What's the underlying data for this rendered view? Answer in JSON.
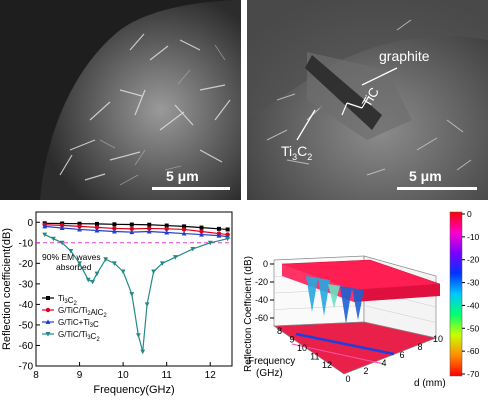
{
  "sem_left": {
    "scale_label": "5 μm"
  },
  "sem_right": {
    "scale_label": "5 μm",
    "label_graphite": "graphite",
    "label_tic": "TiC",
    "label_ti3c2_main": "Ti",
    "label_ti3c2_sub1": "3",
    "label_ti3c2_c": "C",
    "label_ti3c2_sub2": "2"
  },
  "chart_data": [
    {
      "type": "line",
      "xlabel": "Frequency(GHz)",
      "ylabel": "Reflection coefficient(dB)",
      "xlim": [
        8,
        12.5
      ],
      "ylim": [
        -70,
        5
      ],
      "xticks": [
        "8",
        "9",
        "10",
        "11",
        "12"
      ],
      "yticks": [
        "0",
        "-10",
        "-20",
        "-30",
        "-40",
        "-50",
        "-60",
        "-70"
      ],
      "threshold_db": -10,
      "annotation": "90% EM waves absorbed",
      "legend": [
        "Ti3C2",
        "G/TiC/Ti2AlC2",
        "G/TiC+Ti3C",
        "G/TiC/Ti3C2"
      ],
      "series": [
        {
          "name": "Ti3C2",
          "color": "#000000",
          "marker": "square",
          "x": [
            8.2,
            8.6,
            9.0,
            9.4,
            9.8,
            10.2,
            10.6,
            11.0,
            11.4,
            11.8,
            12.2,
            12.4
          ],
          "y": [
            -0.5,
            -0.6,
            -0.7,
            -0.8,
            -1.0,
            -1.1,
            -1.2,
            -1.6,
            -2.0,
            -2.6,
            -3.2,
            -3.5
          ]
        },
        {
          "name": "G/TiC/Ti2AlC2",
          "color": "#e0001b",
          "marker": "circle",
          "x": [
            8.2,
            8.6,
            9.0,
            9.4,
            9.8,
            10.2,
            10.6,
            11.0,
            11.4,
            11.8,
            12.2,
            12.4
          ],
          "y": [
            -1.2,
            -1.5,
            -2.0,
            -2.5,
            -3.0,
            -3.2,
            -3.0,
            -3.2,
            -3.5,
            -4.5,
            -5.5,
            -6.0
          ]
        },
        {
          "name": "G/TiC+Ti3C",
          "color": "#1f3fd0",
          "marker": "triangle",
          "x": [
            8.2,
            8.6,
            9.0,
            9.4,
            9.8,
            10.2,
            10.6,
            11.0,
            11.4,
            11.8,
            12.2,
            12.4
          ],
          "y": [
            -2.0,
            -2.8,
            -3.5,
            -4.0,
            -4.5,
            -4.8,
            -4.5,
            -5.0,
            -5.5,
            -6.0,
            -6.5,
            -7.0
          ]
        },
        {
          "name": "G/TiC/Ti3C2",
          "color": "#238a86",
          "marker": "triangle-down",
          "x": [
            8.2,
            8.4,
            8.6,
            8.8,
            9.0,
            9.2,
            9.3,
            9.4,
            9.6,
            9.8,
            10.0,
            10.2,
            10.35,
            10.45,
            10.55,
            10.7,
            10.9,
            11.2,
            11.6,
            12.0,
            12.4
          ],
          "y": [
            -6,
            -8,
            -10,
            -14,
            -20,
            -28,
            -29,
            -25,
            -18,
            -20,
            -24,
            -35,
            -55,
            -63,
            -40,
            -24,
            -20,
            -17,
            -13,
            -10,
            -8
          ]
        }
      ]
    },
    {
      "type": "surface",
      "zlabel": "Reflection Coefficient (dB)",
      "xlabel_line1": "Frequency",
      "xlabel_line2": "(GHz)",
      "ylabel": "d (mm)",
      "zticks": [
        "0",
        "-20",
        "-40",
        "-60"
      ],
      "freq_ticks": [
        "8",
        "9",
        "10",
        "11",
        "12"
      ],
      "d_ticks": [
        "0",
        "2",
        "4",
        "6",
        "8",
        "10"
      ],
      "colorbar_ticks": [
        "0",
        "-10",
        "-20",
        "-30",
        "-40",
        "-50",
        "-60",
        "-70"
      ],
      "colorbar_colors": [
        "#ff0000",
        "#ff00cc",
        "#7a00ff",
        "#0032ff",
        "#00c8ff",
        "#00ff70",
        "#c8ff00",
        "#ff8c00",
        "#ff0000"
      ]
    }
  ]
}
